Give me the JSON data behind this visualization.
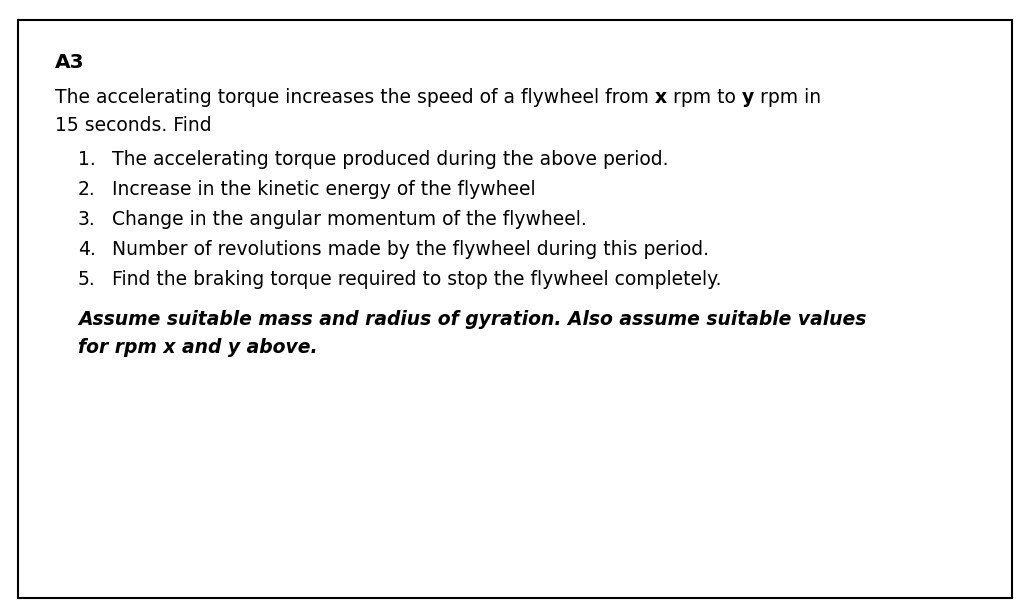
{
  "heading": "A3",
  "line1_parts": [
    [
      "The accelerating torque increases the speed of a flywheel from ",
      false
    ],
    [
      "x",
      true
    ],
    [
      " rpm to ",
      false
    ],
    [
      "y",
      true
    ],
    [
      " rpm in",
      false
    ]
  ],
  "line2": "15 seconds. Find",
  "items": [
    "The accelerating torque produced during the above period.",
    "Increase in the kinetic energy of the flywheel",
    "Change in the angular momentum of the flywheel.",
    "Number of revolutions made by the flywheel during this period.",
    "Find the braking torque required to stop the flywheel completely."
  ],
  "note_line1": "Assume suitable mass and radius of gyration. Also assume suitable values",
  "note_line2": "for rpm x and y above.",
  "bg_color": "#ffffff",
  "border_color": "#000000",
  "text_color": "#000000",
  "font_size": 13.5,
  "heading_font_size": 14.5
}
